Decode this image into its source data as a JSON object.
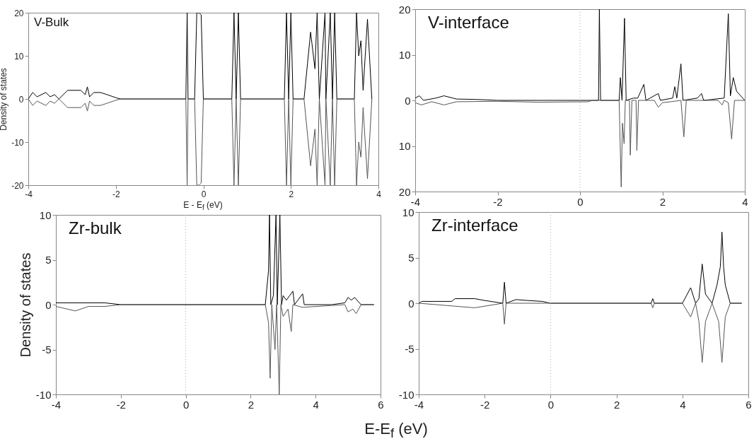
{
  "chart_data": [
    {
      "type": "line",
      "title": "V-Bulk",
      "xlabel": "E - E$_{f}$ (eV)",
      "ylabel": "Density of states",
      "xlim": [
        -4,
        4
      ],
      "xticks": [
        -4,
        -2,
        0,
        2,
        4
      ],
      "ylim": [
        -20,
        20
      ],
      "yticks": [
        -20,
        -10,
        0,
        10,
        20
      ],
      "grid": false,
      "series": [
        {
          "color": "#000000",
          "x": [
            -4,
            -3.9,
            -3.8,
            -3.6,
            -3.5,
            -3.4,
            -3.3,
            -3.1,
            -2.8,
            -2.7,
            -2.65,
            -2.6,
            -2.5,
            -2.35,
            -2.2,
            -2.0,
            -1.9,
            -0.4,
            -0.37,
            -0.35,
            -0.2,
            -0.15,
            -0.1,
            -0.05,
            0,
            0.65,
            0.7,
            0.75,
            0.8,
            0.85,
            1.85,
            1.9,
            1.95,
            2.0,
            2.05,
            2.3,
            2.45,
            2.55,
            2.6,
            2.65,
            2.78,
            2.8,
            2.9,
            2.95,
            3.0,
            3.05,
            3.45,
            3.5,
            3.55,
            3.6,
            3.65,
            3.75,
            3.85
          ],
          "values": [
            0,
            1.5,
            0.5,
            1.5,
            0.5,
            1,
            0,
            2,
            2,
            1,
            2.8,
            0.5,
            1.5,
            1.5,
            1,
            0.3,
            0,
            0,
            20,
            0,
            0,
            20,
            20,
            19.5,
            0,
            0,
            20,
            0,
            20,
            0,
            0,
            20,
            0,
            20,
            0,
            0,
            15.5,
            7,
            20,
            0,
            20,
            0,
            20,
            0,
            20,
            0,
            0,
            20,
            10,
            13.5,
            2,
            18.5,
            0
          ]
        },
        {
          "color": "#555555",
          "x": [
            -4,
            -3.9,
            -3.8,
            -3.6,
            -3.5,
            -3.4,
            -3.3,
            -3.1,
            -2.8,
            -2.7,
            -2.65,
            -2.6,
            -2.5,
            -2.35,
            -2.2,
            -2.0,
            -1.9,
            -0.4,
            -0.37,
            -0.35,
            -0.2,
            -0.15,
            -0.1,
            -0.05,
            0,
            0.65,
            0.7,
            0.75,
            0.8,
            0.85,
            1.85,
            1.9,
            1.95,
            2.0,
            2.05,
            2.3,
            2.45,
            2.55,
            2.6,
            2.65,
            2.78,
            2.8,
            2.9,
            2.95,
            3.0,
            3.05,
            3.45,
            3.5,
            3.55,
            3.6,
            3.65,
            3.75,
            3.85
          ],
          "values": [
            0,
            -1.5,
            -0.5,
            -1.5,
            -0.5,
            -1,
            0,
            -2,
            -2,
            -1,
            -2.8,
            -0.5,
            -1.5,
            -1.5,
            -1,
            -0.3,
            0,
            0,
            -20,
            0,
            0,
            -20,
            -20,
            -19.5,
            0,
            0,
            -20,
            0,
            -20,
            0,
            0,
            -20,
            0,
            -20,
            0,
            0,
            -15.5,
            -7,
            -20,
            0,
            -20,
            0,
            -20,
            0,
            -20,
            0,
            0,
            -20,
            -10,
            -13.5,
            -2,
            -18.5,
            0
          ]
        }
      ]
    },
    {
      "type": "line",
      "title": "V-interface",
      "xlim": [
        -4,
        4
      ],
      "xticks": [
        -4,
        -2,
        0,
        2,
        4
      ],
      "ylim": [
        -20,
        20
      ],
      "yticks": [
        {
          "value": -20,
          "label": "20"
        },
        {
          "value": -10,
          "label": "10"
        },
        0,
        10,
        20
      ],
      "grid": false,
      "ref_lines": [
        {
          "axis": "x",
          "value": 0,
          "color": "#aaaaaa",
          "line_style": "dotted"
        }
      ],
      "series": [
        {
          "color": "#000000",
          "x": [
            -4,
            -3.9,
            -3.8,
            -3.5,
            -3.3,
            -3,
            -2.5,
            -2,
            0.45,
            0.47,
            0.5,
            0.95,
            0.98,
            1.02,
            1.08,
            1.12,
            1.3,
            1.4,
            1.55,
            1.6,
            1.9,
            1.95,
            2.25,
            2.3,
            2.35,
            2.45,
            2.5,
            2.85,
            2.95,
            3.0,
            3.5,
            3.6,
            3.65,
            3.72,
            3.8,
            4
          ],
          "values": [
            0.5,
            1,
            0,
            0.5,
            1,
            0.3,
            0.2,
            0,
            0,
            20,
            0,
            0,
            5,
            0,
            18,
            0,
            0.5,
            0.5,
            3.5,
            0,
            1.5,
            0,
            0.5,
            3,
            0.5,
            8,
            0,
            0.5,
            1.5,
            0,
            0.5,
            19,
            1,
            5,
            2,
            0
          ]
        },
        {
          "color": "#555555",
          "x": [
            -4,
            -3.85,
            -3.6,
            -3.3,
            -3,
            -2,
            -1,
            0.2,
            0.3,
            0.95,
            1.0,
            1.03,
            1.07,
            1.1,
            1.2,
            1.22,
            1.26,
            1.36,
            1.38,
            1.42,
            1.8,
            1.9,
            2.0,
            2.2,
            2.45,
            2.52,
            2.58,
            3.35,
            3.45,
            3.5,
            3.6,
            3.68,
            3.75,
            4
          ],
          "values": [
            -0.5,
            -1,
            -0.3,
            -1,
            -0.3,
            -0.2,
            -0.4,
            -0.3,
            0,
            0,
            -19,
            -5,
            -9.5,
            0,
            0,
            -12,
            0,
            0,
            -11,
            0,
            0,
            -1.5,
            -0.5,
            -0.3,
            0,
            -8,
            0,
            0,
            -1,
            0,
            -0.5,
            -8.5,
            0,
            0
          ]
        }
      ]
    },
    {
      "type": "line",
      "title": "Zr-bulk",
      "xlabel": "E-E$_{f}$ (eV)",
      "ylabel": "Density of states",
      "xlim": [
        -4,
        6
      ],
      "xticks": [
        -4,
        -2,
        0,
        2,
        4,
        6
      ],
      "ylim": [
        -10,
        10
      ],
      "yticks": [
        -10,
        -5,
        0,
        5,
        10
      ],
      "grid": false,
      "ref_lines": [
        {
          "axis": "x",
          "value": 0,
          "color": "#aaaaaa",
          "line_style": "dotted"
        }
      ],
      "series": [
        {
          "color": "#000000",
          "x": [
            -4,
            -3.5,
            -3,
            -2.5,
            -2,
            2.45,
            2.55,
            2.58,
            2.62,
            2.7,
            2.78,
            2.82,
            2.9,
            2.95,
            3.0,
            3.1,
            3.2,
            3.3,
            3.35,
            3.6,
            3.65,
            4.5,
            4.9,
            5.0,
            5.1,
            5.2,
            5.4,
            5.8
          ],
          "values": [
            0.2,
            0.2,
            0.2,
            0.2,
            0,
            0,
            3.8,
            10,
            0,
            1,
            10,
            0,
            10,
            0,
            1,
            0.5,
            1,
            1.5,
            0,
            1.2,
            0,
            0,
            0.2,
            0.8,
            0.5,
            0.8,
            0,
            0
          ]
        },
        {
          "color": "#555555",
          "x": [
            -4,
            -3.4,
            -3,
            -2.5,
            -2,
            2.45,
            2.55,
            2.6,
            2.65,
            2.75,
            2.8,
            2.88,
            2.93,
            3.0,
            3.15,
            3.25,
            3.3,
            3.6,
            4.9,
            5.0,
            5.15,
            5.25,
            5.4,
            5.8
          ],
          "values": [
            -0.2,
            -0.7,
            -0.2,
            -0.2,
            0,
            0,
            -2,
            -8.2,
            0,
            -5,
            0,
            -10,
            0,
            -1.3,
            -0.5,
            -3,
            0,
            -0.3,
            0,
            -0.8,
            -0.5,
            -1,
            0,
            0
          ]
        }
      ]
    },
    {
      "type": "line",
      "title": "Zr-interface",
      "xlim": [
        -4,
        6
      ],
      "xticks": [
        -4,
        -2,
        0,
        2,
        4,
        6
      ],
      "ylim": [
        -10,
        10
      ],
      "yticks": [
        -10,
        -5,
        0,
        5,
        10
      ],
      "grid": false,
      "ref_lines": [
        {
          "axis": "x",
          "value": 0,
          "color": "#aaaaaa",
          "line_style": "dotted"
        }
      ],
      "series": [
        {
          "color": "#000000",
          "x": [
            -4,
            -3.9,
            -3.0,
            -2.9,
            -2.3,
            -2,
            -1.45,
            -1.4,
            -1.35,
            -1.05,
            -0.7,
            -0.25,
            0,
            3.05,
            3.1,
            3.15,
            4.0,
            4.25,
            4.4,
            4.5,
            4.6,
            4.7,
            4.9,
            5.05,
            5.15,
            5.2,
            5.25,
            5.3,
            5.45,
            5.8
          ],
          "values": [
            0,
            0.2,
            0.2,
            0.5,
            0.5,
            0.3,
            0,
            2.3,
            0,
            0.4,
            0.3,
            0.2,
            0,
            0,
            0.5,
            0,
            0,
            1.7,
            0,
            0.5,
            4.3,
            1,
            0,
            2,
            4,
            7.8,
            4,
            2,
            0,
            0
          ]
        },
        {
          "color": "#555555",
          "x": [
            -4,
            -2.3,
            -1.45,
            -1.4,
            -1.35,
            3.05,
            3.1,
            3.15,
            4.0,
            4.25,
            4.4,
            4.5,
            4.6,
            4.7,
            4.9,
            5.1,
            5.2,
            5.25,
            5.3,
            5.45,
            5.8
          ],
          "values": [
            0,
            -0.5,
            0,
            -2.3,
            0,
            0,
            -0.5,
            0,
            0,
            -1.5,
            0,
            -2,
            -6.5,
            -2,
            0,
            -2,
            -6.5,
            -4,
            -1.5,
            0,
            0
          ]
        }
      ]
    }
  ]
}
